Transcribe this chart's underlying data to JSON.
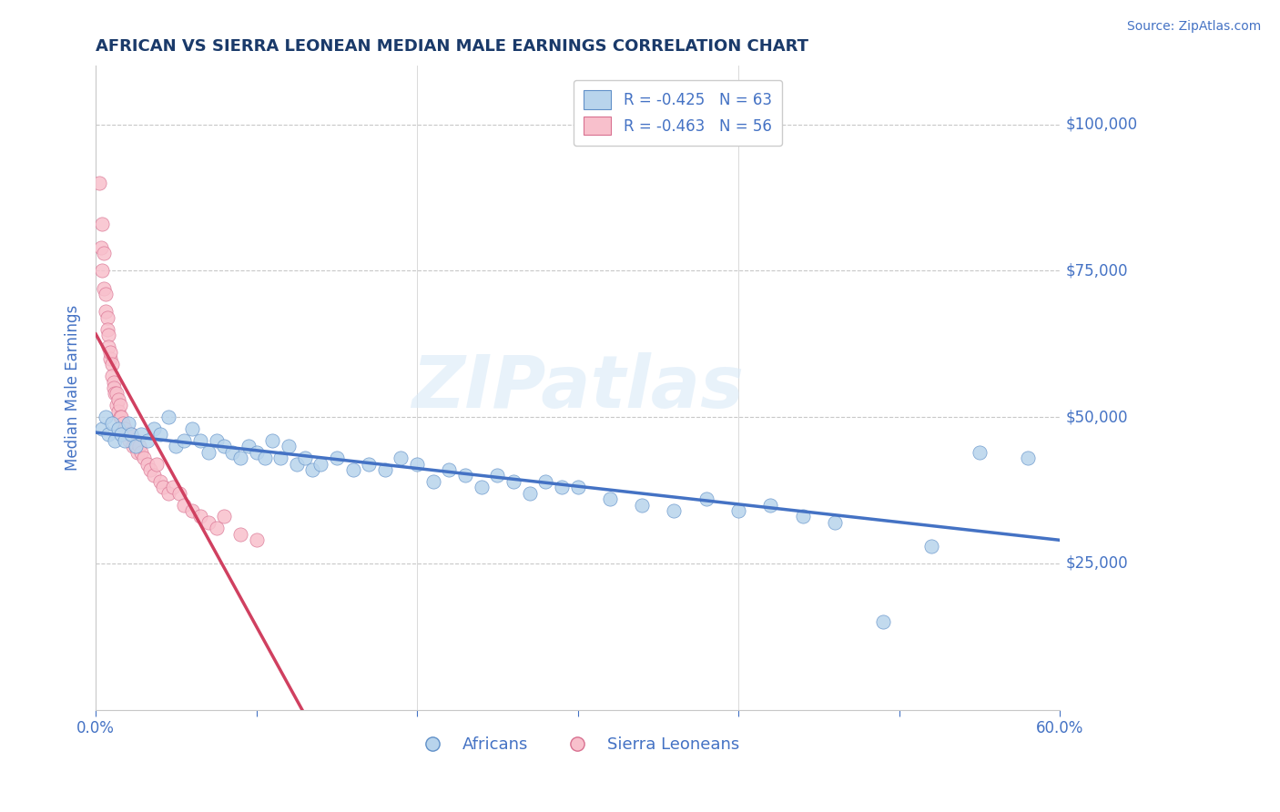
{
  "title": "AFRICAN VS SIERRA LEONEAN MEDIAN MALE EARNINGS CORRELATION CHART",
  "source": "Source: ZipAtlas.com",
  "ylabel": "Median Male Earnings",
  "xmin": 0.0,
  "xmax": 0.6,
  "ymin": 0,
  "ymax": 110000,
  "yticks": [
    25000,
    50000,
    75000,
    100000
  ],
  "ytick_labels": [
    "$25,000",
    "$50,000",
    "$75,000",
    "$100,000"
  ],
  "grid_color": "#c8c8c8",
  "background_color": "#ffffff",
  "africans_color": "#b8d4ec",
  "africans_edge_color": "#6090c8",
  "africans_line_color": "#4472c4",
  "sierra_leoneans_color": "#f8c0cc",
  "sierra_leoneans_edge_color": "#d87090",
  "sierra_leoneans_line_color": "#d04060",
  "africans_R": -0.425,
  "africans_N": 63,
  "sierra_leoneans_R": -0.463,
  "sierra_leoneans_N": 56,
  "legend_label_africans": "Africans",
  "legend_label_sl": "Sierra Leoneans",
  "title_color": "#1a3a6a",
  "tick_color": "#4472c4",
  "watermark": "ZIPatlas",
  "africans_x": [
    0.004,
    0.006,
    0.008,
    0.01,
    0.012,
    0.014,
    0.016,
    0.018,
    0.02,
    0.022,
    0.025,
    0.028,
    0.032,
    0.036,
    0.04,
    0.045,
    0.05,
    0.055,
    0.06,
    0.065,
    0.07,
    0.075,
    0.08,
    0.085,
    0.09,
    0.095,
    0.1,
    0.105,
    0.11,
    0.115,
    0.12,
    0.125,
    0.13,
    0.135,
    0.14,
    0.15,
    0.16,
    0.17,
    0.18,
    0.19,
    0.2,
    0.21,
    0.22,
    0.23,
    0.24,
    0.25,
    0.26,
    0.27,
    0.28,
    0.29,
    0.3,
    0.32,
    0.34,
    0.36,
    0.38,
    0.4,
    0.42,
    0.44,
    0.46,
    0.49,
    0.52,
    0.55,
    0.58
  ],
  "africans_y": [
    48000,
    50000,
    47000,
    49000,
    46000,
    48000,
    47000,
    46000,
    49000,
    47000,
    45000,
    47000,
    46000,
    48000,
    47000,
    50000,
    45000,
    46000,
    48000,
    46000,
    44000,
    46000,
    45000,
    44000,
    43000,
    45000,
    44000,
    43000,
    46000,
    43000,
    45000,
    42000,
    43000,
    41000,
    42000,
    43000,
    41000,
    42000,
    41000,
    43000,
    42000,
    39000,
    41000,
    40000,
    38000,
    40000,
    39000,
    37000,
    39000,
    38000,
    38000,
    36000,
    35000,
    34000,
    36000,
    34000,
    35000,
    33000,
    32000,
    15000,
    28000,
    44000,
    43000
  ],
  "sl_x": [
    0.002,
    0.003,
    0.004,
    0.004,
    0.005,
    0.005,
    0.006,
    0.006,
    0.007,
    0.007,
    0.008,
    0.008,
    0.009,
    0.009,
    0.01,
    0.01,
    0.011,
    0.011,
    0.012,
    0.013,
    0.013,
    0.014,
    0.014,
    0.015,
    0.015,
    0.016,
    0.017,
    0.018,
    0.019,
    0.02,
    0.021,
    0.022,
    0.023,
    0.024,
    0.025,
    0.026,
    0.027,
    0.028,
    0.03,
    0.032,
    0.034,
    0.036,
    0.038,
    0.04,
    0.042,
    0.045,
    0.048,
    0.052,
    0.055,
    0.06,
    0.065,
    0.07,
    0.075,
    0.08,
    0.09,
    0.1
  ],
  "sl_y": [
    90000,
    79000,
    83000,
    75000,
    78000,
    72000,
    71000,
    68000,
    67000,
    65000,
    64000,
    62000,
    60000,
    61000,
    59000,
    57000,
    56000,
    55000,
    54000,
    54000,
    52000,
    53000,
    51000,
    52000,
    50000,
    50000,
    49000,
    48000,
    47000,
    47000,
    46000,
    47000,
    45000,
    46000,
    45000,
    44000,
    45000,
    44000,
    43000,
    42000,
    41000,
    40000,
    42000,
    39000,
    38000,
    37000,
    38000,
    37000,
    35000,
    34000,
    33000,
    32000,
    31000,
    33000,
    30000,
    29000
  ]
}
